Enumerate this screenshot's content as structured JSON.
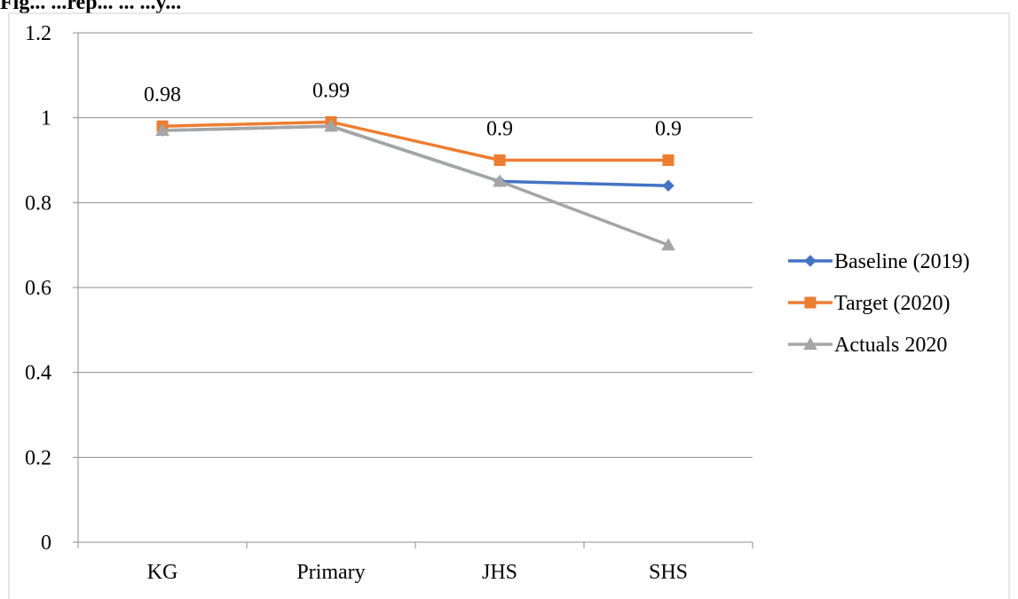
{
  "heading": "Fig... ...rep... ... ...y...",
  "chart_data": {
    "type": "line",
    "categories": [
      "KG",
      "Primary",
      "JHS",
      "SHS"
    ],
    "series": [
      {
        "name": "Baseline (2019)",
        "values": [
          0.97,
          0.98,
          0.85,
          0.84
        ],
        "color": "#4472C4",
        "marker": "diamond"
      },
      {
        "name": "Target (2020)",
        "values": [
          0.98,
          0.99,
          0.9,
          0.9
        ],
        "color": "#ED7D31",
        "marker": "square"
      },
      {
        "name": "Actuals 2020",
        "values": [
          0.97,
          0.98,
          0.85,
          0.7
        ],
        "color": "#A5A5A5",
        "marker": "triangle"
      }
    ],
    "data_labels": {
      "series": "Target (2020)",
      "labels": [
        "0.98",
        "0.99",
        "0.9",
        "0.9"
      ]
    },
    "y_ticks": [
      0,
      0.2,
      0.4,
      0.6,
      0.8,
      1,
      1.2
    ],
    "y_tick_labels": [
      "0",
      "0.2",
      "0.4",
      "0.6",
      "0.8",
      "1",
      "1.2"
    ],
    "ylim": [
      0,
      1.2
    ],
    "grid": true,
    "legend_position": "right",
    "title": "",
    "xlabel": "",
    "ylabel": ""
  }
}
